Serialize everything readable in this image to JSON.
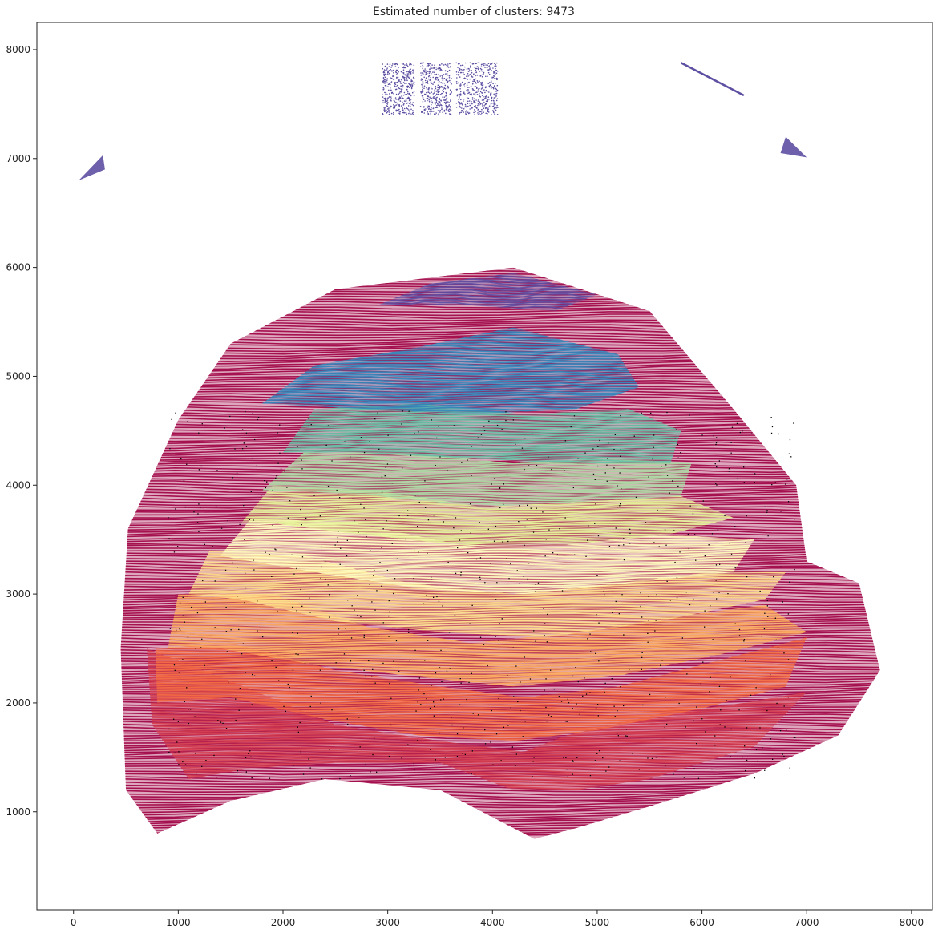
{
  "chart_data": {
    "type": "scatter",
    "title": "Estimated number of clusters: 9473",
    "xlabel": "",
    "ylabel": "",
    "xlim": [
      -350,
      8200
    ],
    "ylim": [
      100,
      8250
    ],
    "xticks": [
      0,
      1000,
      2000,
      3000,
      4000,
      5000,
      6000,
      7000,
      8000
    ],
    "yticks": [
      1000,
      2000,
      3000,
      4000,
      5000,
      6000,
      7000,
      8000
    ],
    "grid": false,
    "legend": "none",
    "colormap": "Spectral",
    "noise_color": "#000000",
    "ring_layers": [
      {
        "color": "#9e0142",
        "region": [
          [
            800,
            800
          ],
          [
            500,
            1200
          ],
          [
            450,
            2500
          ],
          [
            520,
            3600
          ],
          [
            1000,
            4600
          ],
          [
            1500,
            5300
          ],
          [
            2500,
            5800
          ],
          [
            4200,
            6000
          ],
          [
            5500,
            5600
          ],
          [
            6300,
            4700
          ],
          [
            6900,
            4000
          ],
          [
            7000,
            3300
          ],
          [
            7500,
            3100
          ],
          [
            7700,
            2300
          ],
          [
            7300,
            1700
          ],
          [
            6500,
            1350
          ],
          [
            5500,
            1050
          ],
          [
            4800,
            850
          ],
          [
            4400,
            750
          ],
          [
            4100,
            900
          ],
          [
            3500,
            1200
          ],
          [
            2400,
            1300
          ],
          [
            1500,
            1100
          ]
        ]
      },
      {
        "color": "#d53e4f",
        "region": [
          [
            1100,
            1300
          ],
          [
            750,
            1800
          ],
          [
            700,
            2500
          ],
          [
            1500,
            2200
          ],
          [
            2500,
            1800
          ],
          [
            3500,
            1650
          ],
          [
            4300,
            1550
          ],
          [
            4700,
            1700
          ],
          [
            5600,
            1900
          ],
          [
            6400,
            2000
          ],
          [
            7000,
            2100
          ],
          [
            6500,
            1600
          ],
          [
            5500,
            1300
          ],
          [
            4800,
            1200
          ],
          [
            4200,
            1200
          ],
          [
            3500,
            1450
          ],
          [
            2500,
            1450
          ],
          [
            1700,
            1400
          ]
        ]
      },
      {
        "color": "#f46d43",
        "region": [
          [
            800,
            2000
          ],
          [
            780,
            2500
          ],
          [
            1500,
            2550
          ],
          [
            2500,
            2300
          ],
          [
            3500,
            2150
          ],
          [
            4300,
            2050
          ],
          [
            5200,
            2150
          ],
          [
            6200,
            2400
          ],
          [
            7000,
            2600
          ],
          [
            6800,
            2150
          ],
          [
            6000,
            1950
          ],
          [
            5000,
            1750
          ],
          [
            4200,
            1650
          ],
          [
            3300,
            1700
          ],
          [
            2400,
            1850
          ],
          [
            1500,
            2050
          ]
        ]
      },
      {
        "color": "#fdae61",
        "region": [
          [
            900,
            2500
          ],
          [
            1000,
            3000
          ],
          [
            1900,
            3000
          ],
          [
            2800,
            2700
          ],
          [
            3800,
            2550
          ],
          [
            4800,
            2650
          ],
          [
            5800,
            2800
          ],
          [
            6600,
            2900
          ],
          [
            7000,
            2650
          ],
          [
            6200,
            2450
          ],
          [
            5200,
            2250
          ],
          [
            4200,
            2150
          ],
          [
            3200,
            2250
          ],
          [
            2300,
            2350
          ],
          [
            1400,
            2500
          ]
        ]
      },
      {
        "color": "#fee08b",
        "region": [
          [
            1100,
            3000
          ],
          [
            1300,
            3400
          ],
          [
            2200,
            3350
          ],
          [
            3200,
            3100
          ],
          [
            4200,
            3000
          ],
          [
            5200,
            3100
          ],
          [
            6100,
            3200
          ],
          [
            6800,
            3200
          ],
          [
            6600,
            2950
          ],
          [
            5600,
            2750
          ],
          [
            4500,
            2600
          ],
          [
            3500,
            2650
          ],
          [
            2500,
            2750
          ],
          [
            1600,
            2950
          ]
        ]
      },
      {
        "color": "#ffffbf",
        "region": [
          [
            1400,
            3350
          ],
          [
            1700,
            3700
          ],
          [
            2700,
            3650
          ],
          [
            3700,
            3450
          ],
          [
            4700,
            3450
          ],
          [
            5600,
            3550
          ],
          [
            6500,
            3500
          ],
          [
            6300,
            3200
          ],
          [
            5300,
            3100
          ],
          [
            4300,
            3000
          ],
          [
            3300,
            3050
          ],
          [
            2300,
            3200
          ]
        ]
      },
      {
        "color": "#e6f598",
        "region": [
          [
            1600,
            3650
          ],
          [
            1900,
            4000
          ],
          [
            2900,
            3950
          ],
          [
            3900,
            3800
          ],
          [
            4900,
            3850
          ],
          [
            5800,
            3900
          ],
          [
            6300,
            3700
          ],
          [
            5700,
            3550
          ],
          [
            4700,
            3450
          ],
          [
            3700,
            3450
          ],
          [
            2700,
            3550
          ],
          [
            1900,
            3650
          ]
        ]
      },
      {
        "color": "#abdda4",
        "region": [
          [
            1800,
            3950
          ],
          [
            2200,
            4300
          ],
          [
            3200,
            4300
          ],
          [
            4200,
            4200
          ],
          [
            5200,
            4250
          ],
          [
            5900,
            4200
          ],
          [
            5800,
            3900
          ],
          [
            4900,
            3850
          ],
          [
            3900,
            3800
          ],
          [
            2900,
            3900
          ],
          [
            2100,
            3950
          ]
        ]
      },
      {
        "color": "#66c2a5",
        "region": [
          [
            2000,
            4300
          ],
          [
            2300,
            4700
          ],
          [
            3300,
            4750
          ],
          [
            4300,
            4650
          ],
          [
            5300,
            4700
          ],
          [
            5800,
            4500
          ],
          [
            5700,
            4200
          ],
          [
            4700,
            4200
          ],
          [
            3700,
            4250
          ],
          [
            2700,
            4300
          ]
        ]
      },
      {
        "color": "#3288bd",
        "region": [
          [
            1800,
            4750
          ],
          [
            2300,
            5100
          ],
          [
            3200,
            5250
          ],
          [
            4200,
            5450
          ],
          [
            5200,
            5200
          ],
          [
            5400,
            4900
          ],
          [
            4800,
            4700
          ],
          [
            3800,
            4650
          ],
          [
            2800,
            4700
          ]
        ]
      },
      {
        "color": "#5e4fa2",
        "region": [
          [
            2900,
            5650
          ],
          [
            3400,
            5850
          ],
          [
            4200,
            5950
          ],
          [
            5000,
            5750
          ],
          [
            4600,
            5600
          ],
          [
            3800,
            5650
          ]
        ]
      }
    ],
    "outlier_clusters": [
      {
        "color": "#5e4fa2",
        "shape": "rect",
        "xlim": [
          2950,
          4050
        ],
        "ylim": [
          7400,
          7880
        ]
      },
      {
        "color": "#5e4fa2",
        "shape": "triangle",
        "points": [
          [
            50,
            6800
          ],
          [
            280,
            7030
          ],
          [
            300,
            6900
          ]
        ]
      },
      {
        "color": "#5e4fa2",
        "shape": "triangle",
        "points": [
          [
            6750,
            7050
          ],
          [
            6800,
            7200
          ],
          [
            7000,
            7010
          ]
        ]
      },
      {
        "color": "#5e4fa2",
        "shape": "line",
        "points": [
          [
            5800,
            7880
          ],
          [
            6400,
            7580
          ]
        ]
      }
    ]
  }
}
